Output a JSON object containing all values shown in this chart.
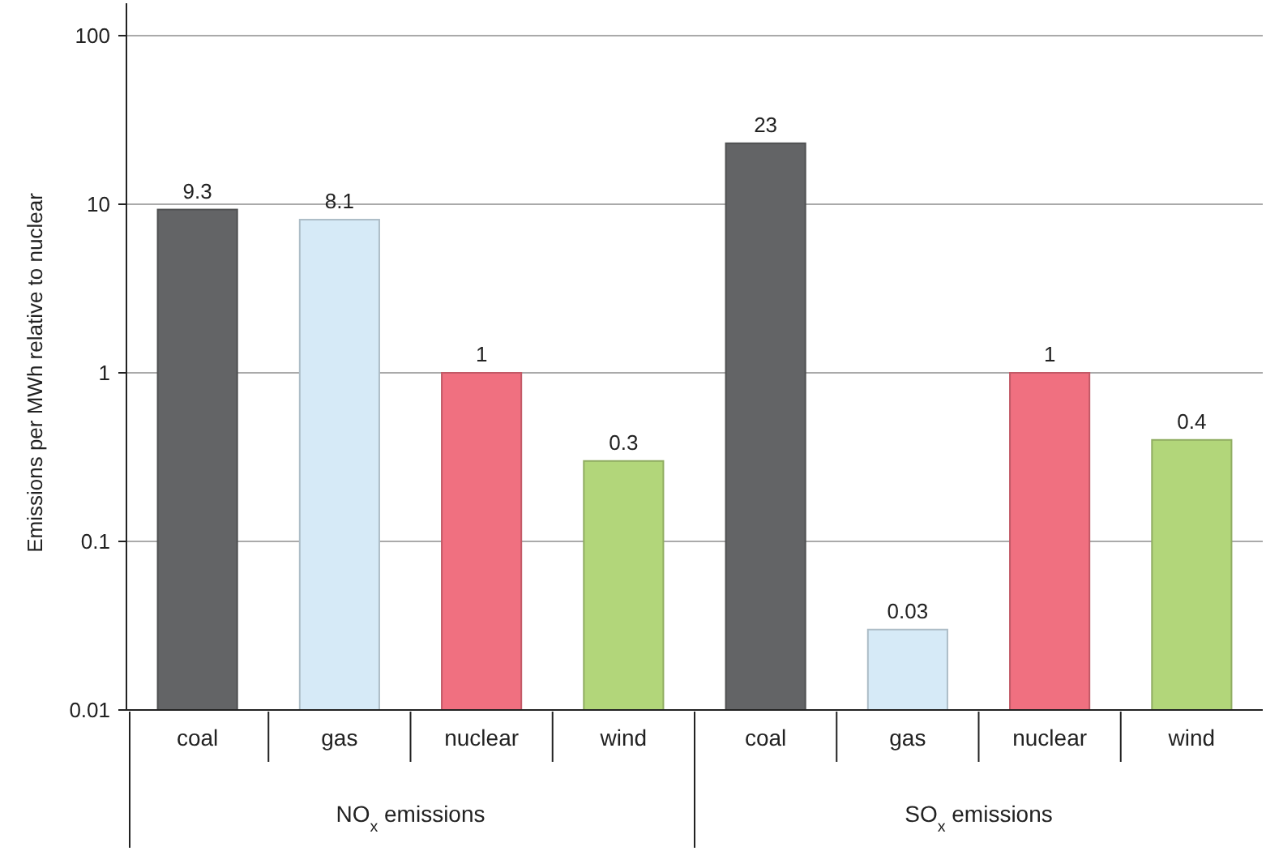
{
  "chart_data": {
    "type": "bar",
    "ylabel": "Emissions per MWh relative to nuclear",
    "categories": [
      "coal",
      "gas",
      "nuclear",
      "wind",
      "coal",
      "gas",
      "nuclear",
      "wind"
    ],
    "values": [
      9.3,
      8.1,
      1,
      0.3,
      23,
      0.03,
      1,
      0.4
    ],
    "colors": [
      "#636466",
      "#d6eaf7",
      "#f07080",
      "#b2d67a",
      "#636466",
      "#d6eaf7",
      "#f07080",
      "#b2d67a"
    ],
    "log": "y",
    "ylim": [
      0.01,
      100
    ],
    "yticks": [
      0.01,
      0.1,
      1,
      10,
      100
    ],
    "grid": "y",
    "data_labels": true,
    "annotations": [
      "NO$_{x}$ emissions",
      "SO$_{x}$ emissions"
    ]
  }
}
